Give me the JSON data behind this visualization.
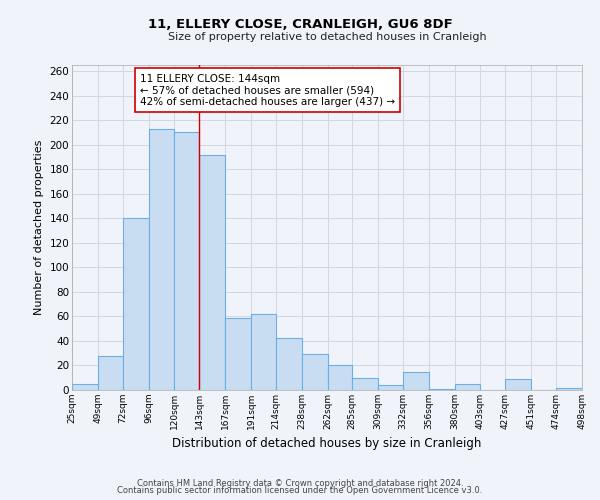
{
  "title": "11, ELLERY CLOSE, CRANLEIGH, GU6 8DF",
  "subtitle": "Size of property relative to detached houses in Cranleigh",
  "xlabel": "Distribution of detached houses by size in Cranleigh",
  "ylabel": "Number of detached properties",
  "bar_left_edges": [
    25,
    49,
    72,
    96,
    120,
    143,
    167,
    191,
    214,
    238,
    262,
    285,
    309,
    332,
    356,
    380,
    403,
    427,
    451,
    474
  ],
  "bar_heights": [
    5,
    28,
    140,
    213,
    210,
    192,
    59,
    62,
    42,
    29,
    20,
    10,
    4,
    15,
    1,
    5,
    0,
    9,
    0,
    2
  ],
  "bar_widths": [
    24,
    23,
    24,
    24,
    23,
    24,
    24,
    23,
    24,
    24,
    23,
    24,
    23,
    24,
    24,
    23,
    24,
    24,
    23,
    24
  ],
  "bar_color": "#c9ddf2",
  "bar_edge_color": "#6aaee8",
  "marker_x": 143,
  "marker_color": "#cc0000",
  "ylim": [
    0,
    265
  ],
  "yticks": [
    0,
    20,
    40,
    60,
    80,
    100,
    120,
    140,
    160,
    180,
    200,
    220,
    240,
    260
  ],
  "xtick_labels": [
    "25sqm",
    "49sqm",
    "72sqm",
    "96sqm",
    "120sqm",
    "143sqm",
    "167sqm",
    "191sqm",
    "214sqm",
    "238sqm",
    "262sqm",
    "285sqm",
    "309sqm",
    "332sqm",
    "356sqm",
    "380sqm",
    "403sqm",
    "427sqm",
    "451sqm",
    "474sqm",
    "498sqm"
  ],
  "xtick_positions": [
    25,
    49,
    72,
    96,
    120,
    143,
    167,
    191,
    214,
    238,
    262,
    285,
    309,
    332,
    356,
    380,
    403,
    427,
    451,
    474,
    498
  ],
  "annotation_title": "11 ELLERY CLOSE: 144sqm",
  "annotation_line1": "← 57% of detached houses are smaller (594)",
  "annotation_line2": "42% of semi-detached houses are larger (437) →",
  "annotation_box_color": "#ffffff",
  "annotation_box_edge": "#cc0000",
  "grid_color": "#d0d8e4",
  "background_color": "#f0f4fa",
  "footer1": "Contains HM Land Registry data © Crown copyright and database right 2024.",
  "footer2": "Contains public sector information licensed under the Open Government Licence v3.0."
}
